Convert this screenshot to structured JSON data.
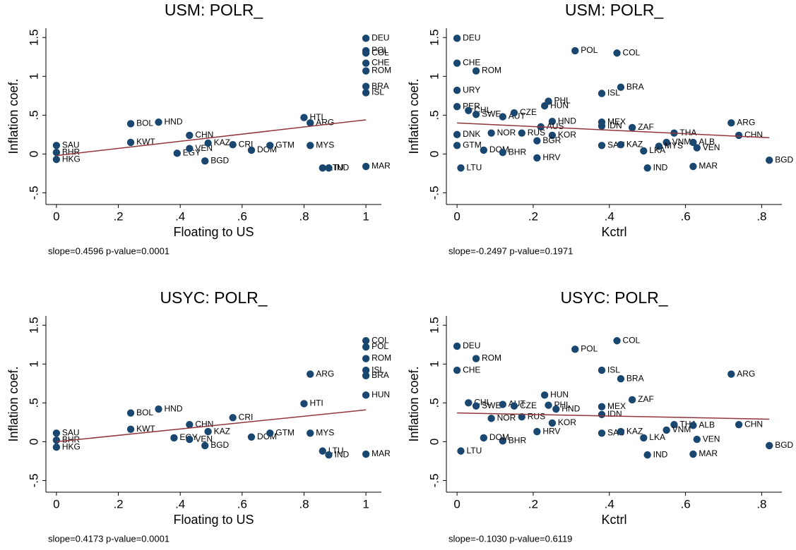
{
  "chart_data": [
    {
      "type": "scatter",
      "title": "USM: POLR_",
      "xlabel": "Floating to US",
      "ylabel": "Inflation coef.",
      "note": "slope=0.4596 p-value=0.0001",
      "xlim": [
        -0.034,
        1.05
      ],
      "ylim": [
        -0.65,
        1.62
      ],
      "xticks": [
        0,
        {
          "value": 0.2,
          "label": ".2"
        },
        {
          "value": 0.4,
          "label": ".4"
        },
        {
          "value": 0.6,
          "label": ".6"
        },
        {
          "value": 0.8,
          "label": ".8"
        },
        1
      ],
      "yticks": [
        {
          "value": -0.5,
          "label": "-.5"
        },
        0,
        {
          "value": 0.5,
          "label": ".5"
        },
        1,
        1.5
      ],
      "series": [
        {
          "color": "#1a476f",
          "labels": [
            "SAU",
            "BHR",
            "HKG",
            "KWT",
            "BOL",
            "HND",
            "CHN",
            "EGY",
            "VEN",
            "KAZ",
            "CRI",
            "DOM",
            "GTM",
            "BGD",
            "HTI",
            "ARG",
            "MYS",
            "LTU",
            "IND",
            "DEU",
            "POL",
            "COL",
            "CHE",
            "ROM",
            "BRA",
            "ISL",
            "MAR"
          ],
          "x": [
            0,
            0,
            0,
            0.24,
            0.24,
            0.33,
            0.43,
            0.39,
            0.43,
            0.49,
            0.57,
            0.63,
            0.69,
            0.48,
            0.8,
            0.82,
            0.82,
            0.86,
            0.88,
            1,
            1,
            1,
            1,
            1,
            1,
            1,
            1
          ],
          "values": [
            0.11,
            0.02,
            -0.07,
            0.15,
            0.39,
            0.41,
            0.24,
            0.01,
            0.07,
            0.14,
            0.12,
            0.05,
            0.11,
            -0.09,
            0.47,
            0.4,
            0.11,
            -0.18,
            -0.18,
            1.49,
            1.33,
            1.3,
            1.17,
            1.07,
            0.87,
            0.79,
            -0.16
          ]
        }
      ],
      "trend": {
        "color": "#90353b",
        "x": [
          0,
          1
        ],
        "values": [
          -0.02,
          0.44
        ]
      }
    },
    {
      "type": "scatter",
      "title": "USM: POLR_",
      "xlabel": "Kctrl",
      "ylabel": "Inflation coef.",
      "note": "slope=-0.2497 p-value=0.1971",
      "xlim": [
        -0.028,
        0.853
      ],
      "ylim": [
        -0.65,
        1.62
      ],
      "xticks": [
        0,
        {
          "value": 0.2,
          "label": ".2"
        },
        {
          "value": 0.4,
          "label": ".4"
        },
        {
          "value": 0.6,
          "label": ".6"
        },
        {
          "value": 0.8,
          "label": ".8"
        }
      ],
      "yticks": [
        {
          "value": -0.5,
          "label": "-.5"
        },
        0,
        {
          "value": 0.5,
          "label": ".5"
        },
        1,
        1.5
      ],
      "series": [
        {
          "color": "#1a476f",
          "labels": [
            "DEU",
            "CHE",
            "ROM",
            "URY",
            "POL",
            "COL",
            "BRA",
            "ISL",
            "PHL",
            "HUN",
            "PER",
            "CHL",
            "SWE",
            "AUT",
            "CZE",
            "HND",
            "MEX",
            "IDN",
            "ZAF",
            "AUS",
            "ARG",
            "CHN",
            "THA",
            "NOR",
            "RUS",
            "KOR",
            "DNK",
            "BGR",
            "SAU",
            "KAZ",
            "VNM",
            "ALB",
            "MYS",
            "VEN",
            "LKA",
            "DOM",
            "BHR",
            "HRV",
            "IND",
            "MAR",
            "BGD",
            "LTU",
            "GTM"
          ],
          "x": [
            0,
            0,
            0.05,
            0,
            0.31,
            0.42,
            0.43,
            0.38,
            0.24,
            0.23,
            0,
            0.03,
            0.05,
            0.12,
            0.15,
            0.25,
            0.38,
            0.38,
            0.46,
            0.22,
            0.72,
            0.74,
            0.57,
            0.09,
            0.17,
            0.25,
            0,
            0.21,
            0.38,
            0.43,
            0.55,
            0.62,
            0.53,
            0.63,
            0.49,
            0.07,
            0.12,
            0.21,
            0.5,
            0.62,
            0.82,
            0.01,
            0
          ],
          "values": [
            1.49,
            1.17,
            1.07,
            0.82,
            1.33,
            1.3,
            0.86,
            0.78,
            0.68,
            0.62,
            0.61,
            0.56,
            0.51,
            0.48,
            0.53,
            0.42,
            0.41,
            0.36,
            0.34,
            0.35,
            0.4,
            0.24,
            0.27,
            0.27,
            0.27,
            0.24,
            0.25,
            0.17,
            0.11,
            0.12,
            0.15,
            0.15,
            0.1,
            0.08,
            0.04,
            0.05,
            0.02,
            -0.05,
            -0.18,
            -0.16,
            -0.08,
            -0.18,
            0.11
          ]
        }
      ],
      "trend": {
        "color": "#90353b",
        "x": [
          0,
          0.82
        ],
        "values": [
          0.4,
          0.21
        ]
      }
    },
    {
      "type": "scatter",
      "title": "USYC: POLR_",
      "xlabel": "Floating to US",
      "ylabel": "Inflation coef.",
      "note": "slope=0.4173 p-value=0.0001",
      "xlim": [
        -0.034,
        1.05
      ],
      "ylim": [
        -0.65,
        1.62
      ],
      "xticks": [
        0,
        {
          "value": 0.2,
          "label": ".2"
        },
        {
          "value": 0.4,
          "label": ".4"
        },
        {
          "value": 0.6,
          "label": ".6"
        },
        {
          "value": 0.8,
          "label": ".8"
        },
        1
      ],
      "yticks": [
        {
          "value": -0.5,
          "label": "-.5"
        },
        0,
        {
          "value": 0.5,
          "label": ".5"
        },
        1,
        1.5
      ],
      "series": [
        {
          "color": "#1a476f",
          "labels": [
            "COL",
            "POL",
            "ROM",
            "ISL",
            "BRA",
            "ARG",
            "HUN",
            "HTI",
            "SAU",
            "BHR",
            "HKG",
            "KWT",
            "BOL",
            "HND",
            "CHN",
            "KAZ",
            "CRI",
            "EGY",
            "VEN",
            "BGD",
            "DOM",
            "GTM",
            "MYS",
            "LTU",
            "IND",
            "MAR"
          ],
          "x": [
            1,
            1,
            1,
            1,
            1,
            0.82,
            1,
            0.8,
            0,
            0,
            0,
            0.24,
            0.24,
            0.33,
            0.43,
            0.49,
            0.57,
            0.38,
            0.43,
            0.48,
            0.63,
            0.69,
            0.82,
            0.86,
            0.88,
            1
          ],
          "values": [
            1.3,
            1.22,
            1.07,
            0.92,
            0.85,
            0.87,
            0.6,
            0.49,
            0.11,
            0.02,
            -0.07,
            0.16,
            0.37,
            0.42,
            0.22,
            0.13,
            0.31,
            0.05,
            0.03,
            -0.05,
            0.06,
            0.11,
            0.11,
            -0.12,
            -0.17,
            -0.16
          ]
        }
      ],
      "trend": {
        "color": "#90353b",
        "x": [
          0,
          1
        ],
        "values": [
          0.0,
          0.41
        ]
      }
    },
    {
      "type": "scatter",
      "title": "USYC: POLR_",
      "xlabel": "Kctrl",
      "ylabel": "Inflation coef.",
      "note": "slope=-0.1030 p-value=0.6119",
      "xlim": [
        -0.028,
        0.853
      ],
      "ylim": [
        -0.65,
        1.62
      ],
      "xticks": [
        0,
        {
          "value": 0.2,
          "label": ".2"
        },
        {
          "value": 0.4,
          "label": ".4"
        },
        {
          "value": 0.6,
          "label": ".6"
        },
        {
          "value": 0.8,
          "label": ".8"
        }
      ],
      "yticks": [
        {
          "value": -0.5,
          "label": "-.5"
        },
        0,
        {
          "value": 0.5,
          "label": ".5"
        },
        1,
        1.5
      ],
      "series": [
        {
          "color": "#1a476f",
          "labels": [
            "DEU",
            "ROM",
            "CHE",
            "POL",
            "COL",
            "ISL",
            "BRA",
            "ARG",
            "HUN",
            "ZAF",
            "MEX",
            "PHL",
            "HND",
            "IDN",
            "CHL",
            "SWE",
            "AUT",
            "CZE",
            "NOR",
            "RUS",
            "KOR",
            "HRV",
            "THA",
            "ALB",
            "CHN",
            "SAU",
            "KAZ",
            "LKA",
            "VNM",
            "VEN",
            "BHR",
            "DOM",
            "IND",
            "MAR",
            "BGD",
            "LTU"
          ],
          "x": [
            0,
            0.05,
            0,
            0.31,
            0.42,
            0.38,
            0.43,
            0.72,
            0.23,
            0.46,
            0.38,
            0.24,
            0.26,
            0.38,
            0.03,
            0.05,
            0.12,
            0.15,
            0.09,
            0.17,
            0.25,
            0.21,
            0.57,
            0.62,
            0.74,
            0.38,
            0.43,
            0.49,
            0.55,
            0.63,
            0.12,
            0.07,
            0.5,
            0.62,
            0.82,
            0.01
          ],
          "values": [
            1.23,
            1.07,
            0.92,
            1.19,
            1.3,
            0.92,
            0.81,
            0.87,
            0.6,
            0.54,
            0.45,
            0.47,
            0.42,
            0.35,
            0.5,
            0.46,
            0.48,
            0.46,
            0.3,
            0.32,
            0.24,
            0.13,
            0.22,
            0.21,
            0.22,
            0.11,
            0.13,
            0.05,
            0.15,
            0.03,
            0.01,
            0.05,
            -0.17,
            -0.16,
            -0.05,
            -0.12
          ]
        }
      ],
      "trend": {
        "color": "#90353b",
        "x": [
          0,
          0.82
        ],
        "values": [
          0.37,
          0.29
        ]
      }
    }
  ]
}
